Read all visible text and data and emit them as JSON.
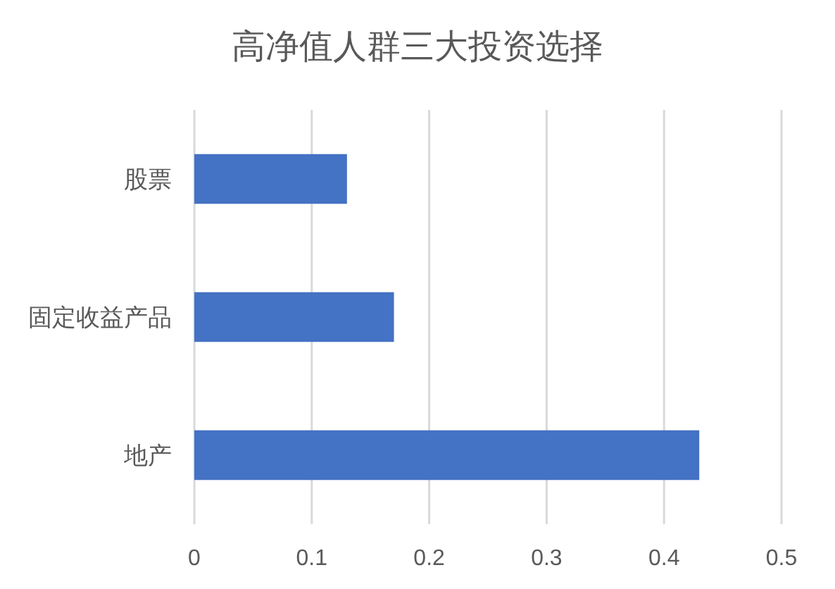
{
  "chart_data": {
    "type": "bar",
    "orientation": "horizontal",
    "title": "高净值人群三大投资选择",
    "categories": [
      "股票",
      "固定收益产品",
      "地产"
    ],
    "values": [
      0.13,
      0.17,
      0.43
    ],
    "color": "#4472c4",
    "xlim": [
      0,
      0.5
    ],
    "xticks": [
      0,
      0.1,
      0.2,
      0.3,
      0.4,
      0.5
    ],
    "grid": "x"
  }
}
